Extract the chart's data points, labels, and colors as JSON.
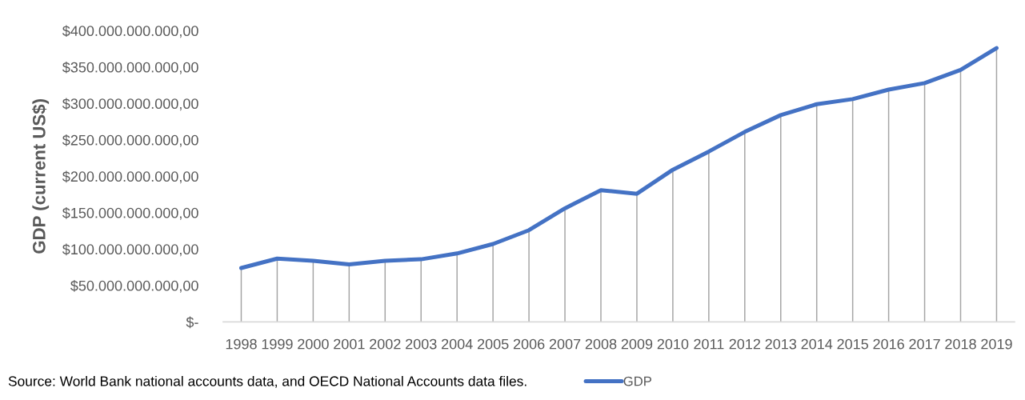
{
  "chart_data": {
    "type": "line",
    "ylabel": "GDP (current US$)",
    "categories": [
      "1998",
      "1999",
      "2000",
      "2001",
      "2002",
      "2003",
      "2004",
      "2005",
      "2006",
      "2007",
      "2008",
      "2009",
      "2010",
      "2011",
      "2012",
      "2013",
      "2014",
      "2015",
      "2016",
      "2017",
      "2018",
      "2019"
    ],
    "series": [
      {
        "type": "bar",
        "color": "#a5a5a5",
        "values": [
          74000000000,
          87000000000,
          84000000000,
          79000000000,
          84000000000,
          86000000000,
          94000000000,
          107000000000,
          126000000000,
          156000000000,
          181000000000,
          176000000000,
          209000000000,
          234000000000,
          261000000000,
          284000000000,
          299000000000,
          306000000000,
          319000000000,
          328000000000,
          346000000000,
          376000000000
        ]
      },
      {
        "name": "GDP",
        "color": "#4472c4",
        "values": [
          74000000000,
          87000000000,
          84000000000,
          79000000000,
          84000000000,
          86000000000,
          94000000000,
          107000000000,
          126000000000,
          156000000000,
          181000000000,
          176000000000,
          209000000000,
          234000000000,
          261000000000,
          284000000000,
          299000000000,
          306000000000,
          319000000000,
          328000000000,
          346000000000,
          376000000000
        ]
      }
    ],
    "ylim": [
      0,
      400000000000
    ],
    "yticks": [
      {
        "value": 0,
        "label": "$-"
      },
      {
        "value": 50000000000,
        "label": "$50.000.000.000,00"
      },
      {
        "value": 100000000000,
        "label": "$100.000.000.000,00"
      },
      {
        "value": 150000000000,
        "label": "$150.000.000.000,00"
      },
      {
        "value": 200000000000,
        "label": "$200.000.000.000,00"
      },
      {
        "value": 250000000000,
        "label": "$250.000.000.000,00"
      },
      {
        "value": 300000000000,
        "label": "$300.000.000.000,00"
      },
      {
        "value": 350000000000,
        "label": "$350.000.000.000,00"
      },
      {
        "value": 400000000000,
        "label": "$400.000.000.000,00"
      }
    ],
    "marker": "none",
    "line_style": "solid",
    "legend": "bottom",
    "annotations": [
      "Source: World Bank national accounts data, and OECD National Accounts data files."
    ]
  }
}
